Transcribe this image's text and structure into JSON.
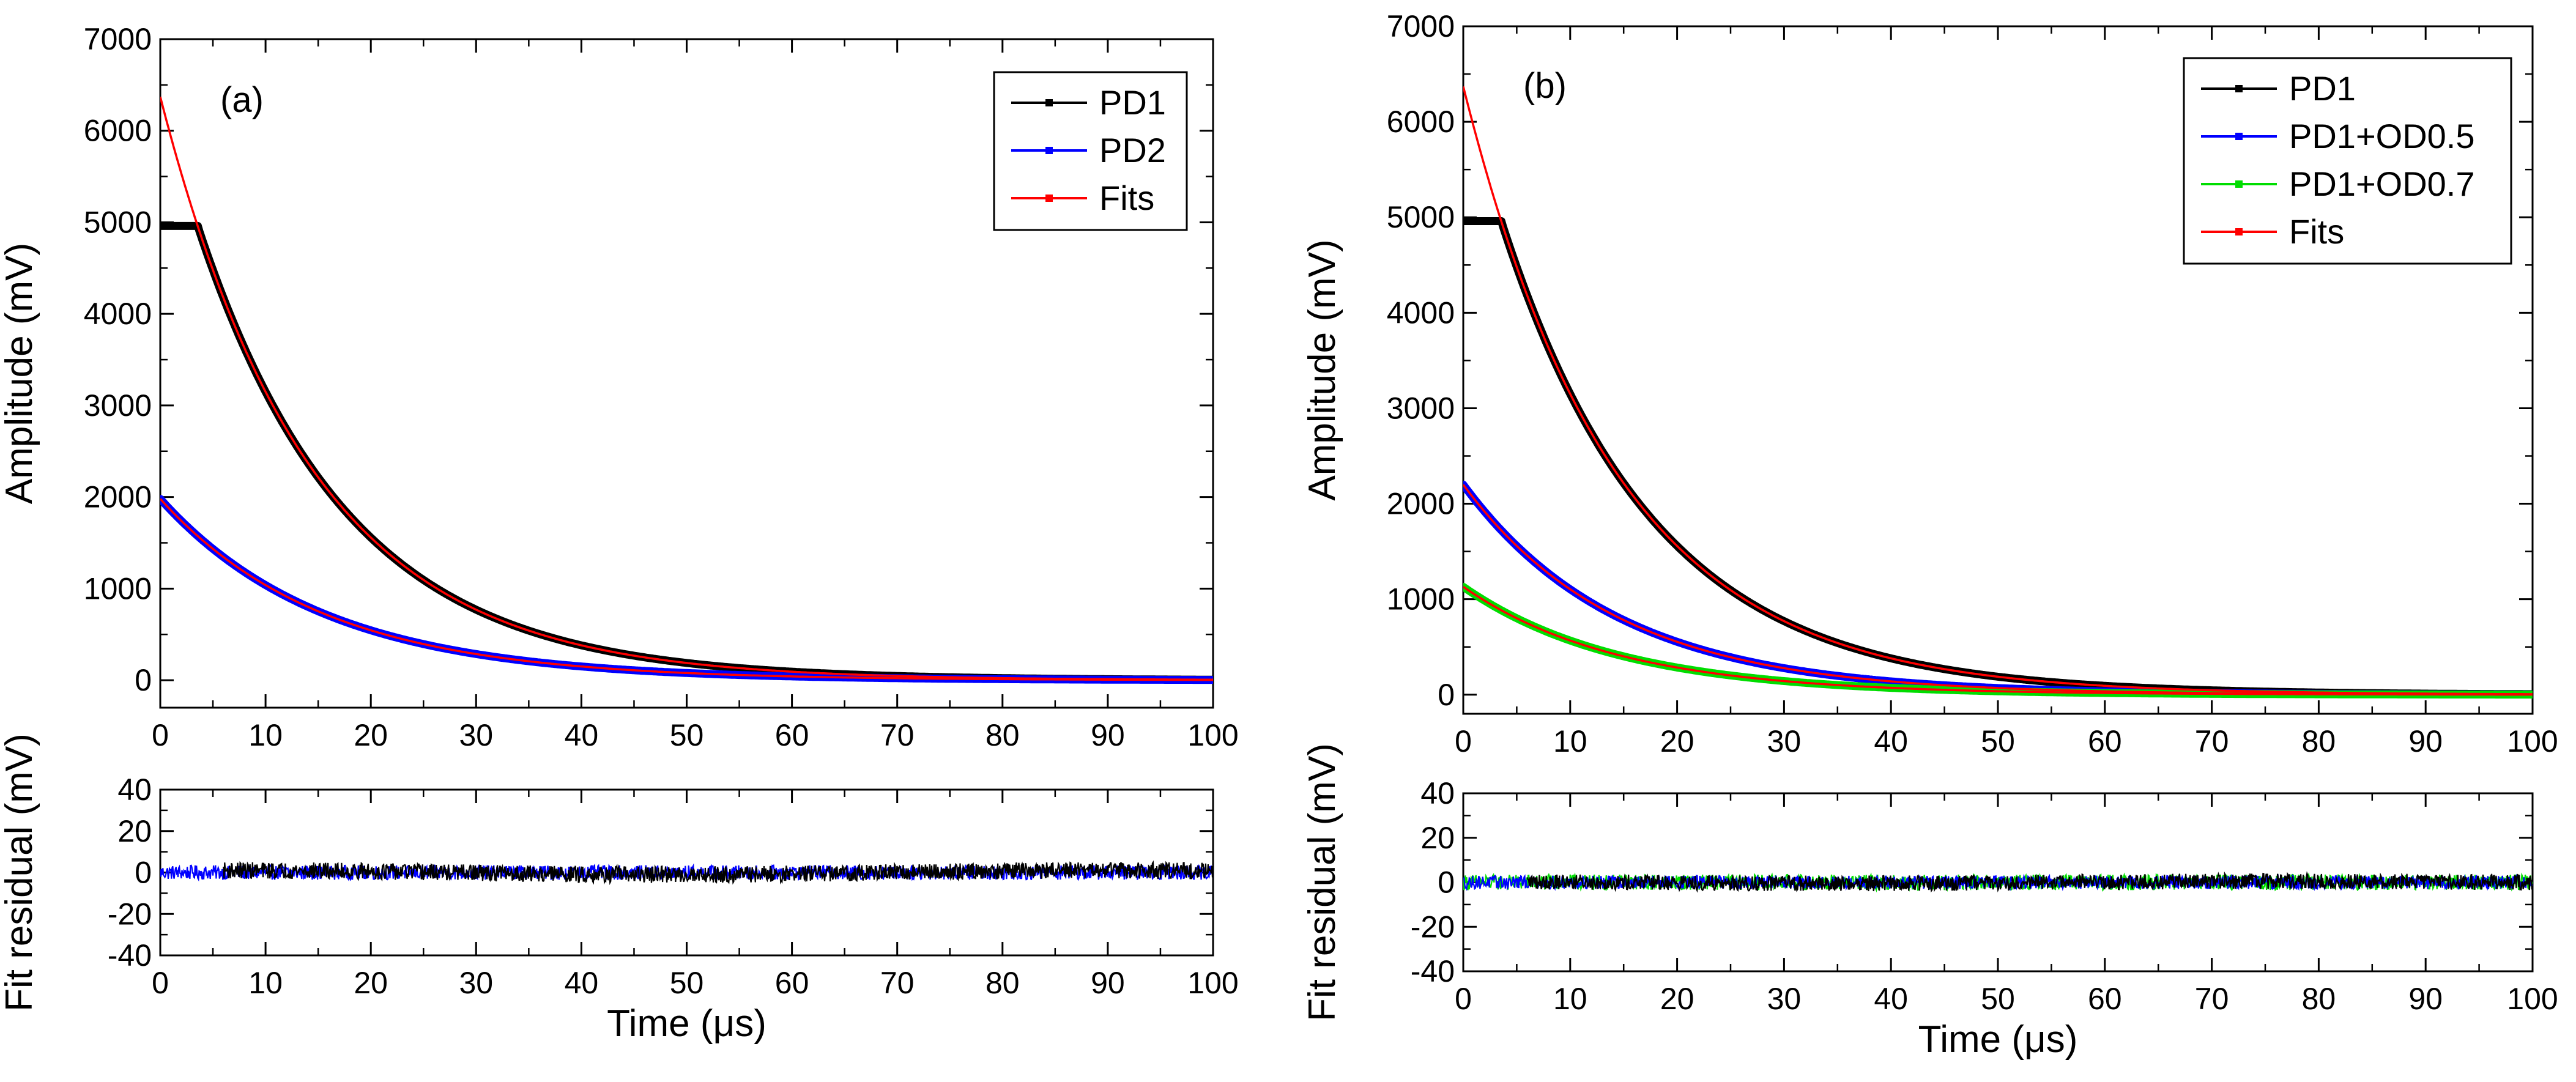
{
  "chart_data": [
    {
      "panel_label": "(a)",
      "type": "line",
      "main": {
        "ylabel": "Amplitude (mV)",
        "xlim": [
          0,
          100
        ],
        "ylim": [
          -300,
          7000
        ],
        "xticks": [
          0,
          10,
          20,
          30,
          40,
          50,
          60,
          70,
          80,
          90,
          100
        ],
        "yticks": [
          0,
          1000,
          2000,
          3000,
          4000,
          5000,
          6000,
          7000
        ],
        "legend_position": "top-right",
        "legend": [
          {
            "label": "PD1",
            "color": "#000000"
          },
          {
            "label": "PD2",
            "color": "#0000ff"
          },
          {
            "label": "Fits",
            "color": "#ff0000"
          }
        ],
        "series": [
          {
            "name": "PD1",
            "color": "#000000",
            "kind": "exp",
            "A": 6370,
            "tau": 14.2,
            "start": 0,
            "saturation": 4960,
            "sat_end": 3.6
          },
          {
            "name": "PD2",
            "color": "#0000ff",
            "kind": "exp",
            "A": 1980,
            "tau": 15.5,
            "start": 0
          }
        ],
        "fits": [
          {
            "name": "Fits",
            "color": "#ff0000",
            "A": 6370,
            "tau": 14.2,
            "start": 0
          },
          {
            "name": "Fits",
            "color": "#ff0000",
            "A": 1980,
            "tau": 15.5,
            "start": 0
          }
        ]
      },
      "residual": {
        "ylabel": "Fit residual (mV)",
        "xlabel": "Time (μs)",
        "xlim": [
          0,
          100
        ],
        "ylim": [
          -40,
          40
        ],
        "xticks": [
          0,
          10,
          20,
          30,
          40,
          50,
          60,
          70,
          80,
          90,
          100
        ],
        "yticks": [
          -40,
          -20,
          0,
          20,
          40
        ],
        "series": [
          {
            "name": "PD2",
            "color": "#0000ff",
            "start": 0,
            "amp": 3.5,
            "offset": 0
          },
          {
            "name": "PD1",
            "color": "#000000",
            "start": 6,
            "amp": 4,
            "offset": 1
          }
        ]
      }
    },
    {
      "panel_label": "(b)",
      "type": "line",
      "main": {
        "ylabel": "Amplitude (mV)",
        "xlim": [
          0,
          100
        ],
        "ylim": [
          -200,
          7000
        ],
        "xticks": [
          0,
          10,
          20,
          30,
          40,
          50,
          60,
          70,
          80,
          90,
          100
        ],
        "yticks": [
          0,
          1000,
          2000,
          3000,
          4000,
          5000,
          6000,
          7000
        ],
        "legend_position": "top-right",
        "legend": [
          {
            "label": "PD1",
            "color": "#000000"
          },
          {
            "label": "PD1+OD0.5",
            "color": "#0000ff"
          },
          {
            "label": "PD1+OD0.7",
            "color": "#00dd00"
          },
          {
            "label": "Fits",
            "color": "#ff0000"
          }
        ],
        "series": [
          {
            "name": "PD1",
            "color": "#000000",
            "kind": "exp",
            "A": 6370,
            "tau": 14.2,
            "start": 0,
            "saturation": 4960,
            "sat_end": 3.6
          },
          {
            "name": "PD1+OD0.5",
            "color": "#0000ff",
            "kind": "exp",
            "A": 2200,
            "tau": 14.5,
            "start": 0
          },
          {
            "name": "PD1+OD0.7",
            "color": "#00dd00",
            "kind": "exp",
            "A": 1130,
            "tau": 14.5,
            "start": 0
          }
        ],
        "fits": [
          {
            "name": "Fits",
            "color": "#ff0000",
            "A": 6370,
            "tau": 14.2,
            "start": 0
          },
          {
            "name": "Fits",
            "color": "#ff0000",
            "A": 2200,
            "tau": 14.5,
            "start": 0
          },
          {
            "name": "Fits",
            "color": "#ff0000",
            "A": 1130,
            "tau": 14.5,
            "start": 0
          }
        ]
      },
      "residual": {
        "ylabel": "Fit residual (mV)",
        "xlabel": "Time (μs)",
        "xlim": [
          0,
          100
        ],
        "ylim": [
          -40,
          40
        ],
        "xticks": [
          0,
          10,
          20,
          30,
          40,
          50,
          60,
          70,
          80,
          90,
          100
        ],
        "yticks": [
          -40,
          -20,
          0,
          20,
          40
        ],
        "series": [
          {
            "name": "PD1+OD0.7",
            "color": "#00dd00",
            "start": 0,
            "amp": 3.5,
            "offset": 0
          },
          {
            "name": "PD1+OD0.5",
            "color": "#0000ff",
            "start": 0,
            "amp": 3,
            "offset": 0
          },
          {
            "name": "PD1",
            "color": "#000000",
            "start": 6,
            "amp": 3.5,
            "offset": 0.5
          }
        ]
      }
    }
  ]
}
